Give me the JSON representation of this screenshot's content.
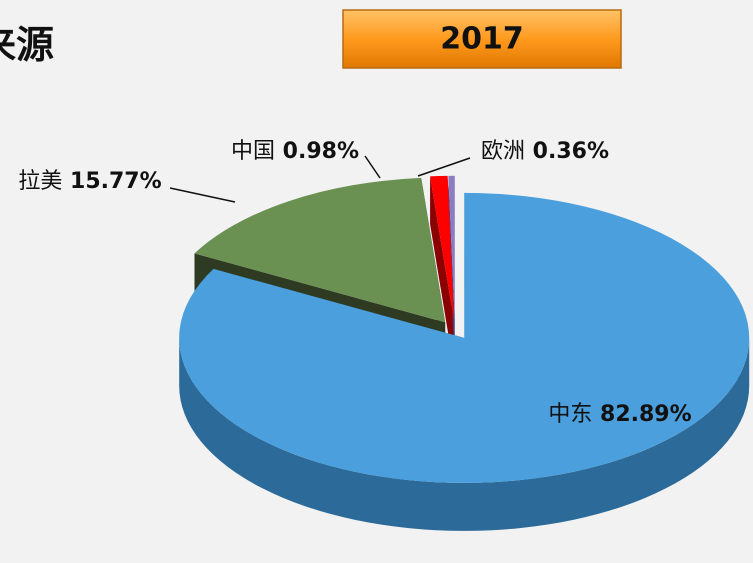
{
  "chart_data": {
    "type": "pie3d",
    "title": "来源",
    "badge": "2017",
    "categories": [
      "中东",
      "拉美",
      "中国",
      "欧洲"
    ],
    "values": [
      82.89,
      15.77,
      0.98,
      0.36
    ],
    "value_labels": [
      "82.89%",
      "15.77%",
      "0.98%",
      "0.36%"
    ],
    "colors": [
      "#4a9fdc",
      "#6b9152",
      "#ff0000",
      "#8e7cc3"
    ],
    "side_colors": [
      "#2c6a99",
      "#2e3b22",
      "#8b0000",
      "#4f3f7a"
    ]
  }
}
